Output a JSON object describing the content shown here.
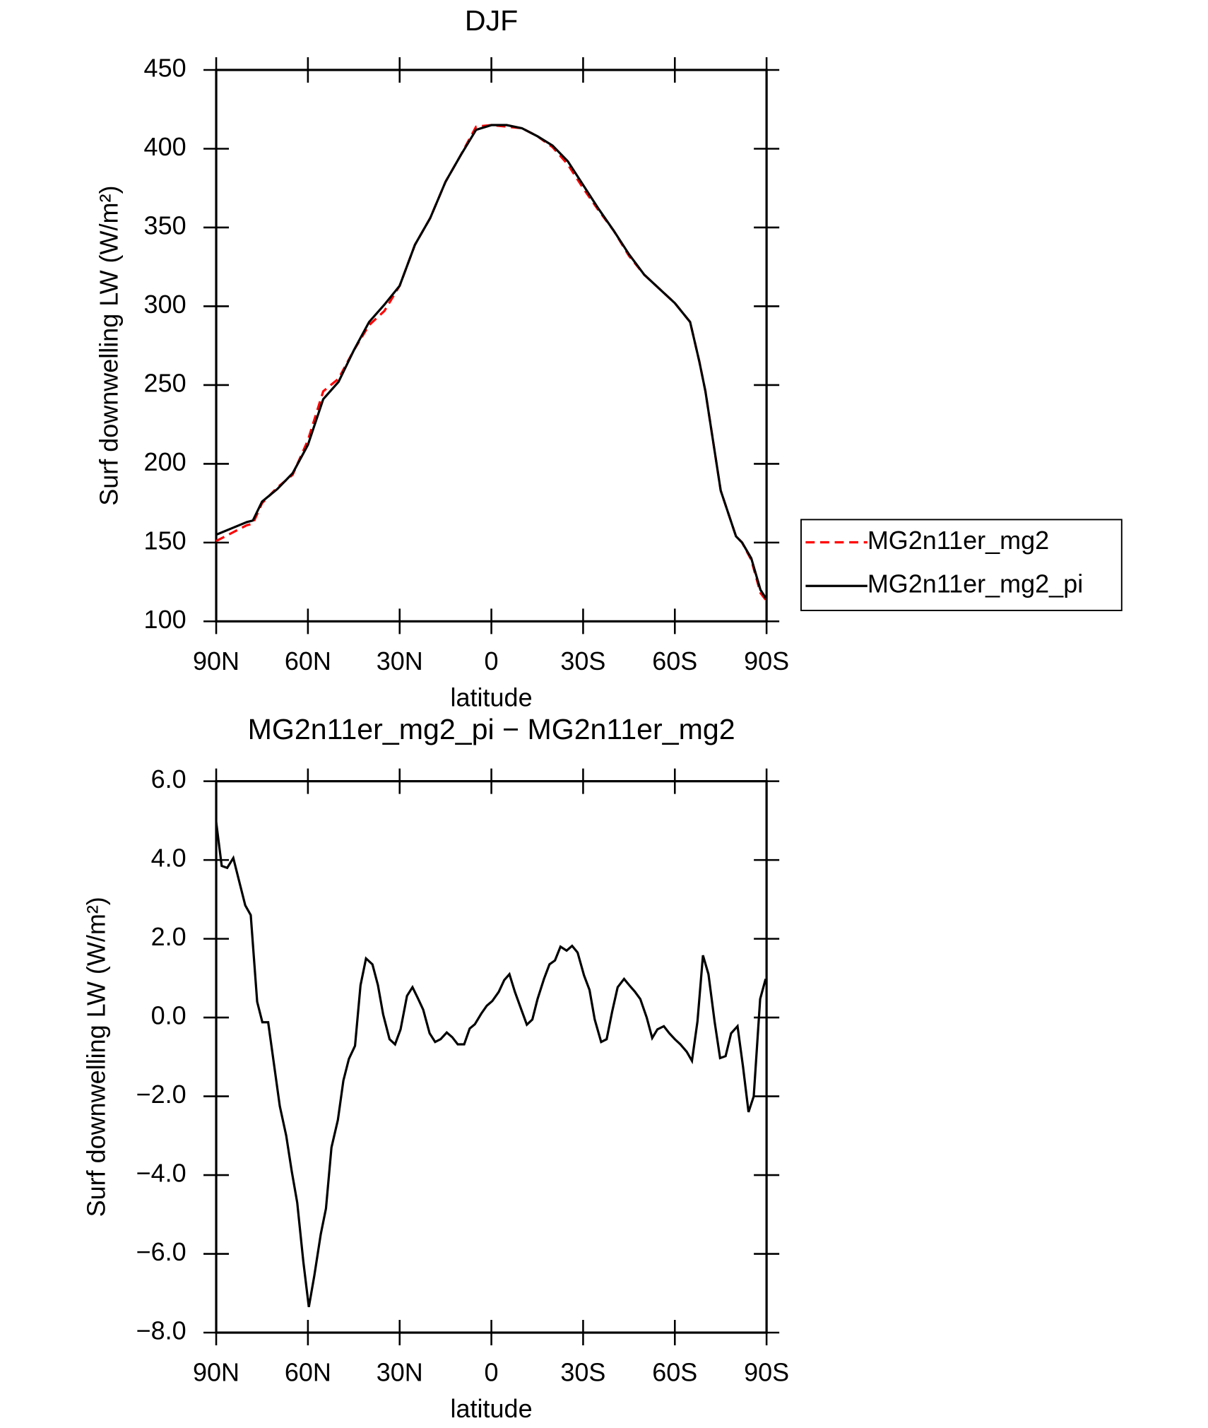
{
  "chart_data": [
    {
      "type": "line",
      "title": "DJF",
      "x_label": "latitude",
      "y_label": "Surf downwelling LW (W/m²)",
      "xlim": [
        90,
        -90
      ],
      "xticks": [
        {
          "value": 90,
          "label": "90N"
        },
        {
          "value": 60,
          "label": "60N"
        },
        {
          "value": 30,
          "label": "30N"
        },
        0,
        {
          "value": -30,
          "label": "30S"
        },
        {
          "value": -60,
          "label": "60S"
        },
        {
          "value": -90,
          "label": "90S"
        }
      ],
      "ylim": [
        100,
        450
      ],
      "yticks": [
        100,
        150,
        200,
        250,
        300,
        350,
        400,
        450
      ],
      "legend": "right",
      "x": [
        90,
        85,
        80,
        78,
        75,
        70,
        65,
        60,
        55,
        50,
        45,
        40,
        35,
        30,
        25,
        20,
        15,
        10,
        5,
        0,
        -5,
        -10,
        -15,
        -20,
        -25,
        -30,
        -35,
        -40,
        -45,
        -50,
        -55,
        -60,
        -65,
        -68,
        -70,
        -75,
        -80,
        -82,
        -85,
        -88,
        -90
      ],
      "series": [
        {
          "name": "MG2n11er_mg2",
          "color": "#ff0000",
          "dash": "dashed",
          "values": [
            151,
            156,
            161,
            162,
            175,
            185,
            193,
            215,
            246,
            254,
            272,
            288,
            297,
            313,
            339,
            356,
            379,
            396,
            414,
            415,
            414,
            413,
            408,
            401,
            390,
            375,
            361,
            348,
            332,
            320,
            311,
            302,
            290,
            265,
            246,
            183,
            154,
            150,
            139,
            118,
            113
          ]
        },
        {
          "name": "MG2n11er_mg2_pi",
          "color": "#000000",
          "dash": "solid",
          "values": [
            155,
            159,
            163,
            164,
            176,
            184,
            194,
            212,
            241,
            252,
            272,
            290,
            301,
            313,
            339,
            356,
            379,
            396,
            412,
            415,
            415,
            413,
            408,
            402,
            392,
            377,
            362,
            348,
            333,
            320,
            311,
            302,
            290,
            265,
            246,
            183,
            154,
            150,
            140,
            120,
            114
          ]
        }
      ]
    },
    {
      "type": "line",
      "title": "MG2n11er_mg2_pi − MG2n11er_mg2",
      "x_label": "latitude",
      "y_label": "Surf downwelling LW (W/m²)",
      "xlim": [
        90,
        -90
      ],
      "xticks": [
        {
          "value": 90,
          "label": "90N"
        },
        {
          "value": 60,
          "label": "60N"
        },
        {
          "value": 30,
          "label": "30N"
        },
        0,
        {
          "value": -30,
          "label": "30S"
        },
        {
          "value": -60,
          "label": "60S"
        },
        {
          "value": -90,
          "label": "90S"
        }
      ],
      "ylim": [
        -8,
        6
      ],
      "yticks": [
        {
          "value": -8,
          "label": "−8.0"
        },
        {
          "value": -6,
          "label": "−6.0"
        },
        {
          "value": -4,
          "label": "−4.0"
        },
        {
          "value": -2,
          "label": "−2.0"
        },
        {
          "value": 0,
          "label": "0.0"
        },
        {
          "value": 2,
          "label": "2.0"
        },
        {
          "value": 4,
          "label": "4.0"
        },
        {
          "value": 6,
          "label": "6.0"
        }
      ],
      "x": [
        90,
        88.2,
        86.4,
        84.4,
        80.5,
        78.7,
        76.6,
        74.9,
        73,
        69.2,
        67.1,
        65.3,
        63.5,
        61.5,
        59.7,
        57.9,
        55.8,
        54.1,
        52.3,
        50.2,
        48.4,
        46.6,
        44.6,
        42.8,
        41,
        38.9,
        37.1,
        35.4,
        33.3,
        31.5,
        29.7,
        27.6,
        25.8,
        24.1,
        22.3,
        20.2,
        18.4,
        16.6,
        14.6,
        12.8,
        11,
        8.9,
        7.1,
        5.4,
        3.3,
        1.5,
        -0.3,
        -2.4,
        -4.2,
        -5.9,
        -7.7,
        -9.8,
        -11.6,
        -13.4,
        -15.1,
        -17.2,
        -19,
        -20.8,
        -22.6,
        -24.6,
        -26.4,
        -28.2,
        -30.3,
        -32.1,
        -33.8,
        -35.9,
        -37.7,
        -39.5,
        -41.3,
        -43.4,
        -45.1,
        -46.9,
        -48.7,
        -50.8,
        -52.6,
        -54.3,
        -56.4,
        -58.2,
        -60,
        -61.8,
        -63.9,
        -65.6,
        -67.4,
        -69.2,
        -71,
        -73,
        -74.8,
        -76.6,
        -78.4,
        -80.5,
        -82.3,
        -84.1,
        -85.8,
        -87.9,
        -89.7
      ],
      "series": [
        {
          "color": "#000000",
          "dash": "solid",
          "values": [
            4.96,
            3.85,
            3.8,
            4.05,
            2.85,
            2.6,
            0.4,
            -0.12,
            -0.12,
            -2.25,
            -3.0,
            -3.9,
            -4.7,
            -6.2,
            -7.35,
            -6.55,
            -5.5,
            -4.85,
            -3.3,
            -2.6,
            -1.6,
            -1.05,
            -0.72,
            0.82,
            1.5,
            1.35,
            0.82,
            0.08,
            -0.55,
            -0.68,
            -0.3,
            0.55,
            0.77,
            0.5,
            0.2,
            -0.4,
            -0.62,
            -0.55,
            -0.38,
            -0.5,
            -0.68,
            -0.68,
            -0.28,
            -0.17,
            0.1,
            0.3,
            0.42,
            0.65,
            0.95,
            1.1,
            0.65,
            0.2,
            -0.18,
            -0.05,
            0.47,
            0.98,
            1.35,
            1.45,
            1.8,
            1.7,
            1.82,
            1.65,
            1.07,
            0.7,
            -0.05,
            -0.62,
            -0.55,
            0.15,
            0.77,
            0.98,
            0.82,
            0.66,
            0.47,
            0,
            -0.52,
            -0.3,
            -0.22,
            -0.4,
            -0.55,
            -0.68,
            -0.87,
            -1.1,
            -0.1,
            1.58,
            1.1,
            -0.1,
            -1.03,
            -0.98,
            -0.4,
            -0.22,
            -1.25,
            -2.4,
            -2.0,
            0.47,
            0.98
          ]
        }
      ]
    }
  ]
}
